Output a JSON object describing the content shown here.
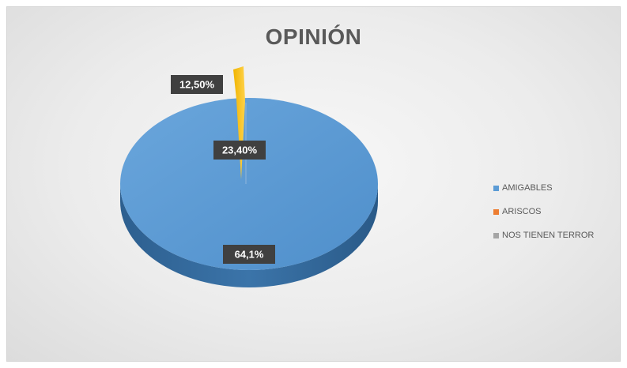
{
  "chart_data": {
    "type": "pie",
    "title": "OPINIÓN",
    "categories": [
      "AMIGABLES",
      "ARISCOS",
      "NOS TIENEN TERROR"
    ],
    "values": [
      64.1,
      23.4,
      12.5
    ],
    "data_labels": [
      "64,1%",
      "23,40%",
      "12,50%"
    ],
    "colors": [
      "#5b9bd5",
      "#ed7d31",
      "#a5a5a5"
    ],
    "exploded_slice_color": "#ffc000",
    "style": "3d",
    "legend_position": "right"
  }
}
